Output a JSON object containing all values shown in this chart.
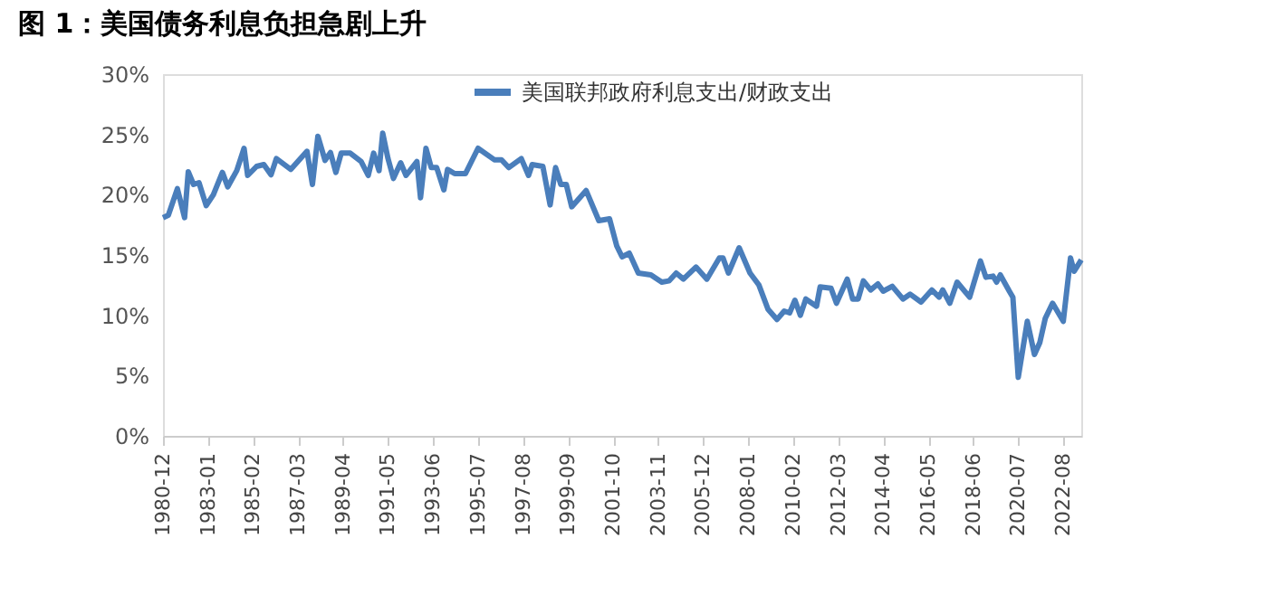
{
  "chart_data": {
    "type": "line",
    "title": "图 1：美国债务利息负担急剧上升",
    "x": [
      "1980-12",
      "1981-03",
      "1981-08",
      "1981-12",
      "1982-02",
      "1982-05",
      "1982-08",
      "1982-12",
      "1983-04",
      "1983-09",
      "1983-12",
      "1984-05",
      "1984-09",
      "1984-11",
      "1985-04",
      "1985-08",
      "1985-12",
      "1986-03",
      "1986-11",
      "1987-08",
      "1987-11",
      "1988-02",
      "1988-06",
      "1988-09",
      "1988-12",
      "1989-03",
      "1989-08",
      "1990-02",
      "1990-06",
      "1990-09",
      "1990-12",
      "1991-02",
      "1991-05",
      "1991-08",
      "1991-12",
      "1992-03",
      "1992-09",
      "1992-11",
      "1993-02",
      "1993-05",
      "1993-08",
      "1993-12",
      "1994-02",
      "1994-06",
      "1994-12",
      "1995-07",
      "1996-04",
      "1996-08",
      "1996-12",
      "1997-07",
      "1997-11",
      "1998-01",
      "1998-07",
      "1998-11",
      "1999-02",
      "1999-05",
      "1999-08",
      "1999-11",
      "2000-07",
      "2001-02",
      "2001-08",
      "2001-12",
      "2002-03",
      "2002-07",
      "2002-12",
      "2003-07",
      "2004-01",
      "2004-05",
      "2004-09",
      "2005-01",
      "2005-08",
      "2006-02",
      "2006-09",
      "2006-11",
      "2007-02",
      "2007-08",
      "2008-02",
      "2008-07",
      "2008-12",
      "2009-05",
      "2009-09",
      "2009-12",
      "2010-03",
      "2010-06",
      "2010-09",
      "2011-03",
      "2011-05",
      "2011-11",
      "2012-02",
      "2012-08",
      "2012-11",
      "2013-02",
      "2013-05",
      "2013-09",
      "2014-01",
      "2014-04",
      "2014-09",
      "2015-03",
      "2015-07",
      "2016-01",
      "2016-07",
      "2016-11",
      "2017-01",
      "2017-05",
      "2017-09",
      "2018-04",
      "2018-10",
      "2019-01",
      "2019-05",
      "2019-07",
      "2019-09",
      "2020-02",
      "2020-04",
      "2020-07",
      "2020-12",
      "2021-04",
      "2021-07",
      "2021-10",
      "2022-02",
      "2022-08",
      "2022-12",
      "2023-02",
      "2023-06"
    ],
    "series": [
      {
        "name": "美国联邦政府利息支出/财政支出",
        "color": "#4a7ebb",
        "values": [
          18.1,
          18.3,
          20.5,
          18.1,
          21.9,
          20.85,
          21.0,
          19.1,
          20.0,
          21.85,
          20.65,
          22.0,
          23.85,
          21.6,
          22.35,
          22.5,
          21.65,
          23.0,
          22.1,
          23.6,
          20.85,
          24.85,
          22.85,
          23.5,
          21.85,
          23.45,
          23.45,
          22.75,
          21.6,
          23.45,
          22.0,
          25.1,
          23.0,
          21.35,
          22.65,
          21.6,
          22.75,
          19.75,
          23.85,
          22.25,
          22.25,
          20.4,
          22.1,
          21.75,
          21.75,
          23.85,
          22.9,
          22.9,
          22.25,
          23.0,
          21.6,
          22.5,
          22.35,
          19.15,
          22.25,
          20.85,
          20.85,
          19.0,
          20.35,
          17.85,
          18.0,
          15.75,
          14.85,
          15.15,
          13.5,
          13.35,
          12.75,
          12.85,
          13.5,
          13.0,
          14.0,
          13.0,
          14.75,
          14.75,
          13.5,
          15.6,
          13.5,
          12.5,
          10.5,
          9.65,
          10.35,
          10.2,
          11.25,
          10.0,
          11.35,
          10.75,
          12.35,
          12.25,
          11.0,
          13.0,
          11.35,
          11.35,
          12.85,
          12.1,
          12.6,
          12.0,
          12.4,
          11.35,
          11.75,
          11.1,
          12.1,
          11.5,
          12.1,
          11.0,
          12.75,
          11.5,
          14.5,
          13.15,
          13.25,
          12.75,
          13.35,
          12.0,
          11.5,
          4.85,
          9.5,
          6.75,
          7.75,
          9.75,
          11.0,
          9.5,
          14.75,
          13.65,
          14.6
        ]
      }
    ],
    "xlim": [
      "1980-12",
      "2023-06"
    ],
    "xticks": [
      "1980-12",
      "1983-01",
      "1985-02",
      "1987-03",
      "1989-04",
      "1991-05",
      "1993-06",
      "1995-07",
      "1997-08",
      "1999-09",
      "2001-10",
      "2003-11",
      "2005-12",
      "2008-01",
      "2010-02",
      "2012-03",
      "2014-04",
      "2016-05",
      "2018-06",
      "2020-07",
      "2022-08"
    ],
    "ylim": [
      0,
      30
    ],
    "yticks": [
      {
        "value": 0,
        "label": "0%"
      },
      {
        "value": 5,
        "label": "5%"
      },
      {
        "value": 10,
        "label": "10%"
      },
      {
        "value": 15,
        "label": "15%"
      },
      {
        "value": 20,
        "label": "20%"
      },
      {
        "value": 25,
        "label": "25%"
      },
      {
        "value": 30,
        "label": "30%"
      }
    ],
    "legend": "top",
    "grid": false
  }
}
